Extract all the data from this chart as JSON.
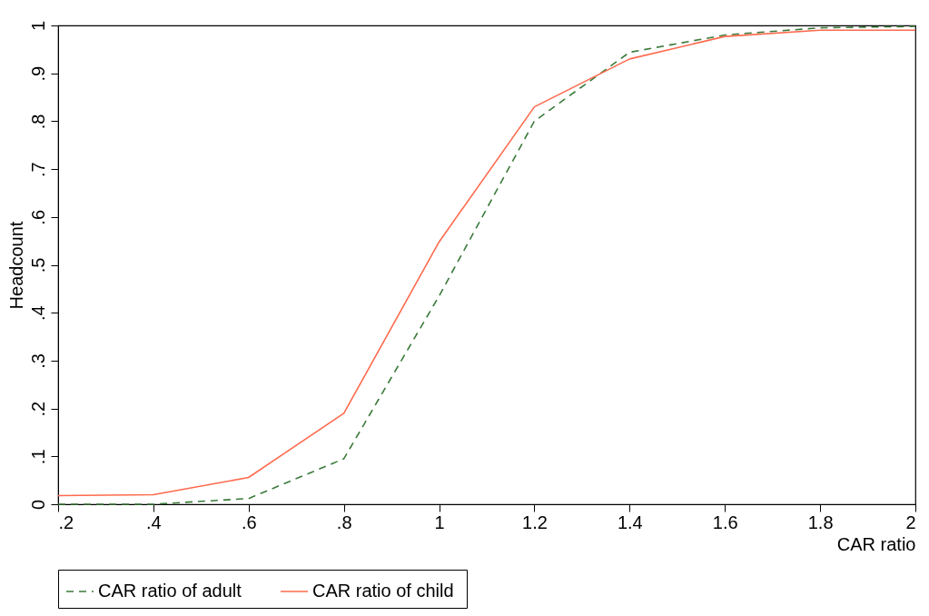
{
  "chart_data": {
    "type": "line",
    "xlabel": "CAR ratio",
    "ylabel": "Headcount",
    "x": [
      0.2,
      0.4,
      0.6,
      0.8,
      1.0,
      1.2,
      1.4,
      1.6,
      1.8,
      2.0
    ],
    "series": [
      {
        "name": "CAR ratio of adult",
        "color": "#3b7a3b",
        "line_style": "dashed",
        "values": [
          0,
          0,
          0.012,
          0.095,
          0.435,
          0.8,
          0.944,
          0.98,
          0.995,
          0.998
        ]
      },
      {
        "name": "CAR  ratio of child",
        "color": "#ff6a4d",
        "line_style": "solid",
        "values": [
          0.018,
          0.02,
          0.056,
          0.19,
          0.548,
          0.83,
          0.93,
          0.977,
          0.99,
          0.99
        ]
      }
    ],
    "xlim": [
      0.2,
      2.0
    ],
    "ylim": [
      0,
      1
    ],
    "xticks": [
      {
        "value": 0.2,
        "label": ".2"
      },
      {
        "value": 0.4,
        "label": ".4"
      },
      {
        "value": 0.6,
        "label": ".6"
      },
      {
        "value": 0.8,
        "label": ".8"
      },
      1,
      {
        "value": 1.2,
        "label": "1.2"
      },
      {
        "value": 1.4,
        "label": "1.4"
      },
      {
        "value": 1.6,
        "label": "1.6"
      },
      {
        "value": 1.8,
        "label": "1.8"
      },
      2
    ],
    "yticks": [
      0,
      {
        "value": 0.1,
        "label": ".1"
      },
      {
        "value": 0.2,
        "label": ".2"
      },
      {
        "value": 0.3,
        "label": ".3"
      },
      {
        "value": 0.4,
        "label": ".4"
      },
      {
        "value": 0.5,
        "label": ".5"
      },
      {
        "value": 0.6,
        "label": ".6"
      },
      {
        "value": 0.7,
        "label": ".7"
      },
      {
        "value": 0.8,
        "label": ".8"
      },
      {
        "value": 0.9,
        "label": ".9"
      },
      1
    ],
    "grid": false,
    "legend": "bottom",
    "marker": "none"
  }
}
